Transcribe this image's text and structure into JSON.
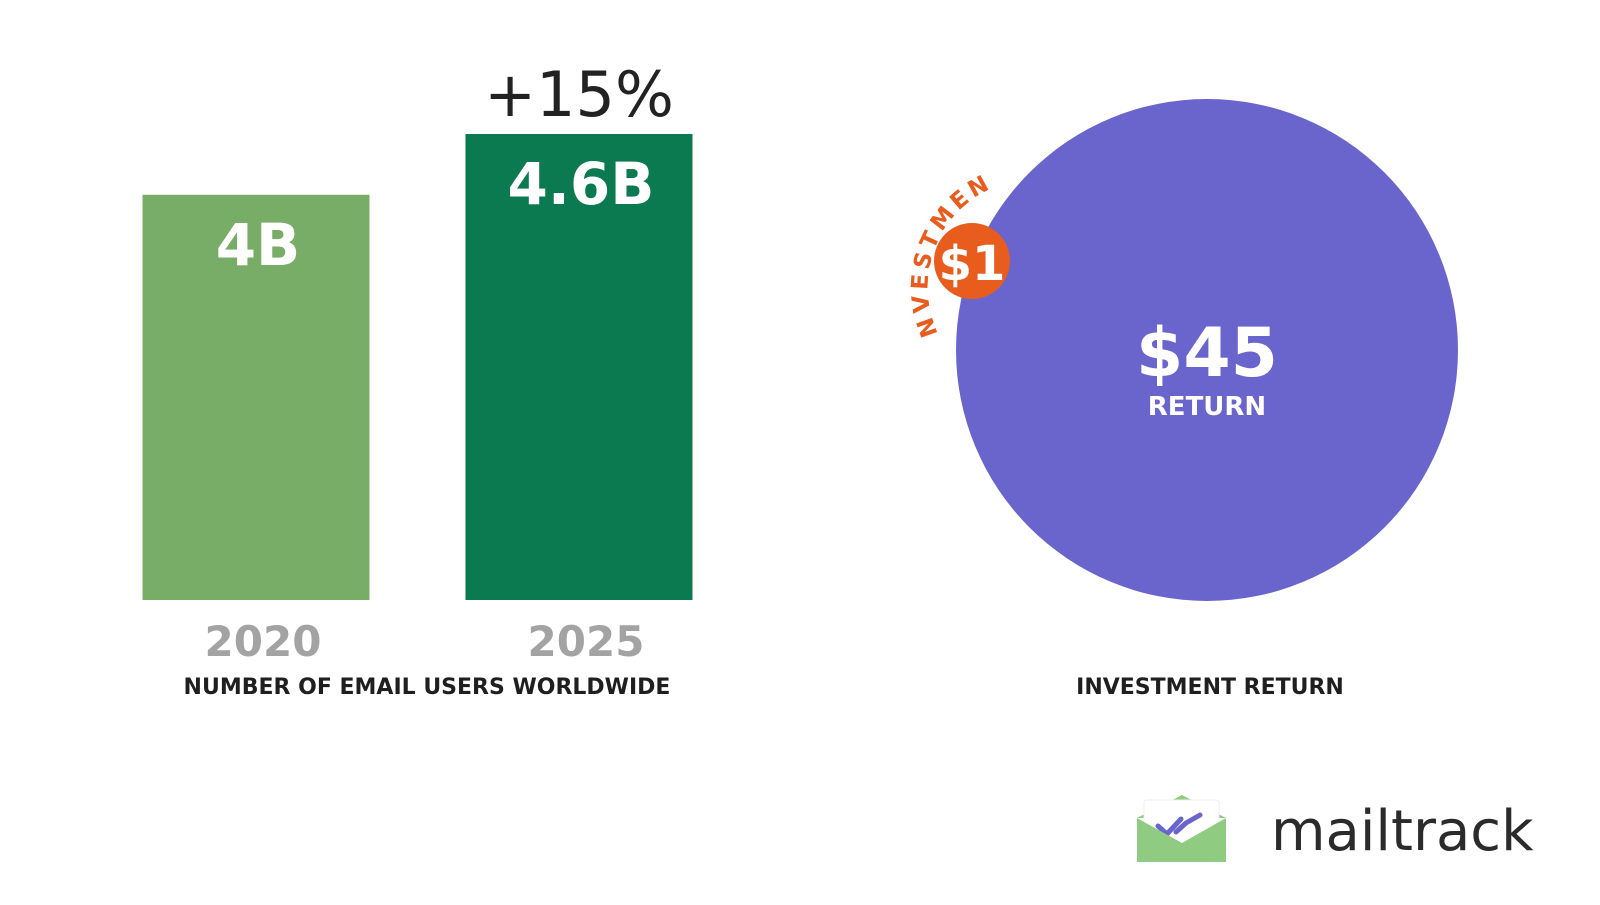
{
  "chart_data": [
    {
      "type": "bar",
      "title": "NUMBER OF EMAIL USERS WORLDWIDE",
      "categories": [
        "2020",
        "2025"
      ],
      "values": [
        4.0,
        4.6
      ],
      "value_labels": [
        "4B",
        "4.6B"
      ],
      "change_label": "+15%",
      "ylim": [
        0,
        4.6
      ],
      "grid": false,
      "colors": [
        "#78ad68",
        "#0b7a50"
      ]
    },
    {
      "type": "pie",
      "title": "INVESTMENT RETURN",
      "return_value": "$45",
      "return_label": "RETURN",
      "investment_value": "$1",
      "investment_label": "INVESTMENT",
      "colors": {
        "return": "#6965cd",
        "investment": "#e85d1e"
      }
    }
  ],
  "brand": {
    "name": "mailtrack",
    "logo_icon": "envelope-check-icon",
    "logo_colors": {
      "envelope": "#8fcc82",
      "check": "#6965cd"
    }
  }
}
